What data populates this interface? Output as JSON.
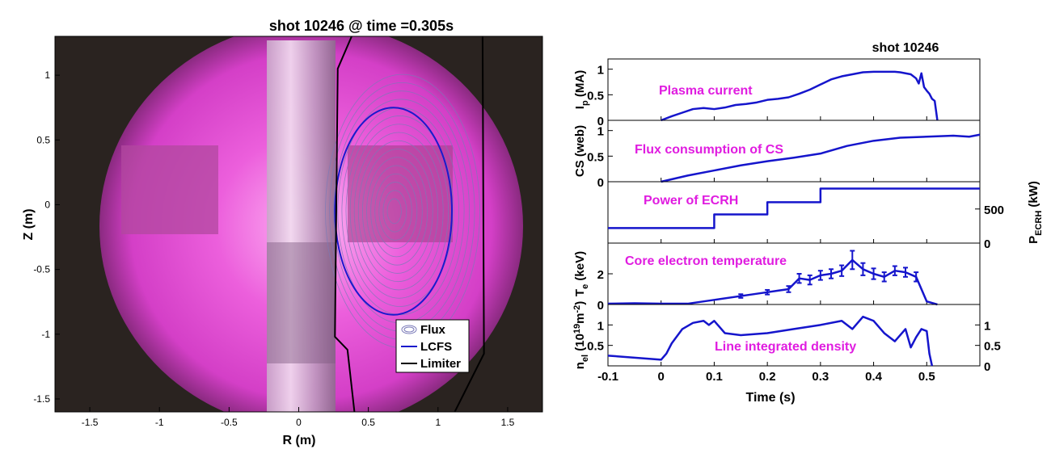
{
  "figure": {
    "left_title": "shot 10246 @ time =0.305s",
    "right_title": "shot 10246",
    "left_xlabel": "R (m)",
    "left_ylabel": "Z (m)",
    "right_xlabel": "Time (s)"
  },
  "colors": {
    "plasma": "#e24fd2",
    "trace": "#1515cc",
    "annotation": "#e01ce0",
    "lcfs": "#1a1acc",
    "flux": "#7a7ab8",
    "limiter": "#000000"
  },
  "chart_data": [
    {
      "type": "scatter",
      "title": "shot 10246 @ time =0.305s",
      "xlabel": "R (m)",
      "ylabel": "Z (m)",
      "xlim": [
        -1.75,
        1.75
      ],
      "ylim": [
        -1.6,
        1.3
      ],
      "xticks": [
        -1.5,
        -1,
        -0.5,
        0,
        0.5,
        1,
        1.5
      ],
      "xtick_labels": [
        "-1.5",
        "-1",
        "-0.5",
        "0",
        "0.5",
        "1",
        "1.5"
      ],
      "yticks": [
        1,
        0.5,
        0,
        -0.5,
        -1,
        -1.5
      ],
      "ytick_labels": [
        "1",
        "0.5",
        "0",
        "-0.5",
        "-1",
        "-1.5"
      ],
      "legend": [
        "Flux",
        "LCFS",
        "Limiter"
      ],
      "lcfs": {
        "r_center": 0.68,
        "z_center": -0.05,
        "r_half_width": 0.42,
        "z_half_height": 0.8
      },
      "limiter": {
        "inner": [
          [
            0.38,
            1.3
          ],
          [
            0.28,
            1.05
          ],
          [
            0.26,
            -1.02
          ],
          [
            0.35,
            -1.12
          ],
          [
            0.4,
            -1.6
          ]
        ],
        "outer": [
          [
            1.32,
            1.3
          ],
          [
            1.33,
            -1.15
          ],
          [
            1.12,
            -1.6
          ]
        ]
      },
      "flux_surfaces": [
        0.12,
        0.2,
        0.28,
        0.36,
        0.44,
        0.52,
        0.6,
        0.68,
        0.76,
        0.84,
        0.92,
        1.0,
        1.08,
        1.16,
        1.24,
        1.32
      ]
    },
    {
      "type": "line",
      "title": "shot 10246",
      "xlabel": "Time (s)",
      "xlim": [
        -0.1,
        0.6
      ],
      "xticks": [
        -0.1,
        0,
        0.1,
        0.2,
        0.3,
        0.4,
        0.5
      ],
      "xtick_labels": [
        "-0.1",
        "0",
        "0.1",
        "0.2",
        "0.3",
        "0.4",
        "0.5"
      ],
      "panels": [
        {
          "id": "ip",
          "ylabel": "I_p (MA)",
          "ylabel_main": "I",
          "ylabel_sub": "p",
          "ylabel_rest": " (MA)",
          "annotation": "Plasma current",
          "ylim": [
            0,
            1.2
          ],
          "yticks": [
            0,
            0.5,
            1
          ],
          "ytick_labels": [
            "0",
            "0.5",
            "1"
          ],
          "series": {
            "x": [
              0.0,
              0.02,
              0.04,
              0.06,
              0.08,
              0.1,
              0.12,
              0.14,
              0.16,
              0.18,
              0.2,
              0.22,
              0.24,
              0.26,
              0.28,
              0.3,
              0.32,
              0.34,
              0.36,
              0.38,
              0.4,
              0.42,
              0.44,
              0.45,
              0.46,
              0.47,
              0.48,
              0.485,
              0.49,
              0.495,
              0.5,
              0.505,
              0.51,
              0.515,
              0.52
            ],
            "y": [
              0.0,
              0.08,
              0.15,
              0.22,
              0.24,
              0.22,
              0.25,
              0.3,
              0.32,
              0.35,
              0.4,
              0.42,
              0.45,
              0.52,
              0.6,
              0.7,
              0.8,
              0.86,
              0.9,
              0.94,
              0.95,
              0.95,
              0.95,
              0.94,
              0.92,
              0.9,
              0.82,
              0.72,
              0.92,
              0.65,
              0.58,
              0.52,
              0.42,
              0.38,
              0.0
            ]
          }
        },
        {
          "id": "cs",
          "ylabel": "CS (web)",
          "annotation": "Flux consumption of CS",
          "ylim": [
            0,
            1.2
          ],
          "yticks": [
            0,
            0.5,
            1
          ],
          "ytick_labels": [
            "0",
            "0.5",
            "1"
          ],
          "series": {
            "x": [
              0.0,
              0.05,
              0.1,
              0.15,
              0.2,
              0.25,
              0.3,
              0.35,
              0.4,
              0.45,
              0.5,
              0.55,
              0.58,
              0.6
            ],
            "y": [
              0.0,
              0.12,
              0.22,
              0.32,
              0.4,
              0.47,
              0.55,
              0.7,
              0.8,
              0.86,
              0.88,
              0.9,
              0.88,
              0.92
            ]
          }
        },
        {
          "id": "ecrh",
          "ylabel": "P_ECRH (kW)",
          "ylabel_main": "P",
          "ylabel_sub": "ECRH",
          "ylabel_rest": " (kW)",
          "annotation": "Power of ECRH",
          "ylim": [
            0,
            900
          ],
          "yticks": [
            0,
            500
          ],
          "ytick_labels": [
            "0",
            "500"
          ],
          "axis_side": "right",
          "series": {
            "x": [
              -0.1,
              0.1,
              0.1,
              0.2,
              0.2,
              0.3,
              0.3,
              0.6
            ],
            "y": [
              220,
              220,
              420,
              420,
              600,
              600,
              800,
              800
            ]
          }
        },
        {
          "id": "te",
          "ylabel": "T_e (keV)",
          "ylabel_main": "T",
          "ylabel_sub": "e",
          "ylabel_rest": " (keV)",
          "annotation": "Core electron temperature",
          "ylim": [
            0,
            4
          ],
          "yticks": [
            0,
            2
          ],
          "ytick_labels": [
            "0",
            "2"
          ],
          "series": {
            "x": [
              -0.1,
              -0.05,
              0.0,
              0.05,
              0.1,
              0.15,
              0.2,
              0.22,
              0.24,
              0.26,
              0.28,
              0.3,
              0.32,
              0.34,
              0.36,
              0.38,
              0.4,
              0.42,
              0.44,
              0.46,
              0.48,
              0.5,
              0.52
            ],
            "y": [
              0.05,
              0.08,
              0.05,
              0.05,
              0.3,
              0.55,
              0.8,
              0.9,
              1.0,
              1.7,
              1.6,
              1.9,
              2.0,
              2.2,
              2.9,
              2.3,
              2.0,
              1.8,
              2.2,
              2.1,
              1.8,
              0.2,
              0.0
            ]
          },
          "error_x": [
            0.15,
            0.2,
            0.24,
            0.26,
            0.28,
            0.3,
            0.32,
            0.34,
            0.36,
            0.38,
            0.4,
            0.42,
            0.44,
            0.46,
            0.48
          ],
          "error_y": [
            0.55,
            0.8,
            1.0,
            1.7,
            1.6,
            1.9,
            2.0,
            2.2,
            2.9,
            2.3,
            2.0,
            1.8,
            2.2,
            2.1,
            1.8
          ],
          "error_size": [
            0.12,
            0.15,
            0.2,
            0.3,
            0.3,
            0.3,
            0.3,
            0.35,
            0.6,
            0.4,
            0.35,
            0.3,
            0.3,
            0.3,
            0.3
          ]
        },
        {
          "id": "ne",
          "ylabel": "n_el (10^19 m^-2)",
          "ylabel_main": "n",
          "ylabel_sub": "el",
          "ylabel_rest": " (10",
          "ylabel_sup1": "19",
          "ylabel_rest2": "m",
          "ylabel_sup2": "-2",
          "ylabel_end": ")",
          "annotation": "Line integrated density",
          "ylim": [
            0,
            1.5
          ],
          "yticks": [
            0.5,
            1
          ],
          "ytick_labels": [
            "0.5",
            "1"
          ],
          "right_yticks": [
            0,
            0.5,
            1
          ],
          "right_ytick_labels": [
            "0",
            "0.5",
            "1"
          ],
          "axis_side": "both",
          "series": {
            "x": [
              -0.1,
              -0.05,
              0.0,
              0.01,
              0.02,
              0.04,
              0.06,
              0.08,
              0.09,
              0.1,
              0.12,
              0.15,
              0.2,
              0.25,
              0.3,
              0.34,
              0.36,
              0.38,
              0.4,
              0.42,
              0.44,
              0.46,
              0.47,
              0.48,
              0.49,
              0.5,
              0.505,
              0.51
            ],
            "y": [
              0.25,
              0.2,
              0.15,
              0.3,
              0.55,
              0.9,
              1.05,
              1.1,
              1.0,
              1.1,
              0.8,
              0.75,
              0.8,
              0.9,
              1.0,
              1.1,
              0.9,
              1.2,
              1.1,
              0.8,
              0.6,
              0.9,
              0.45,
              0.7,
              0.9,
              0.85,
              0.3,
              0.0
            ]
          }
        }
      ]
    }
  ]
}
